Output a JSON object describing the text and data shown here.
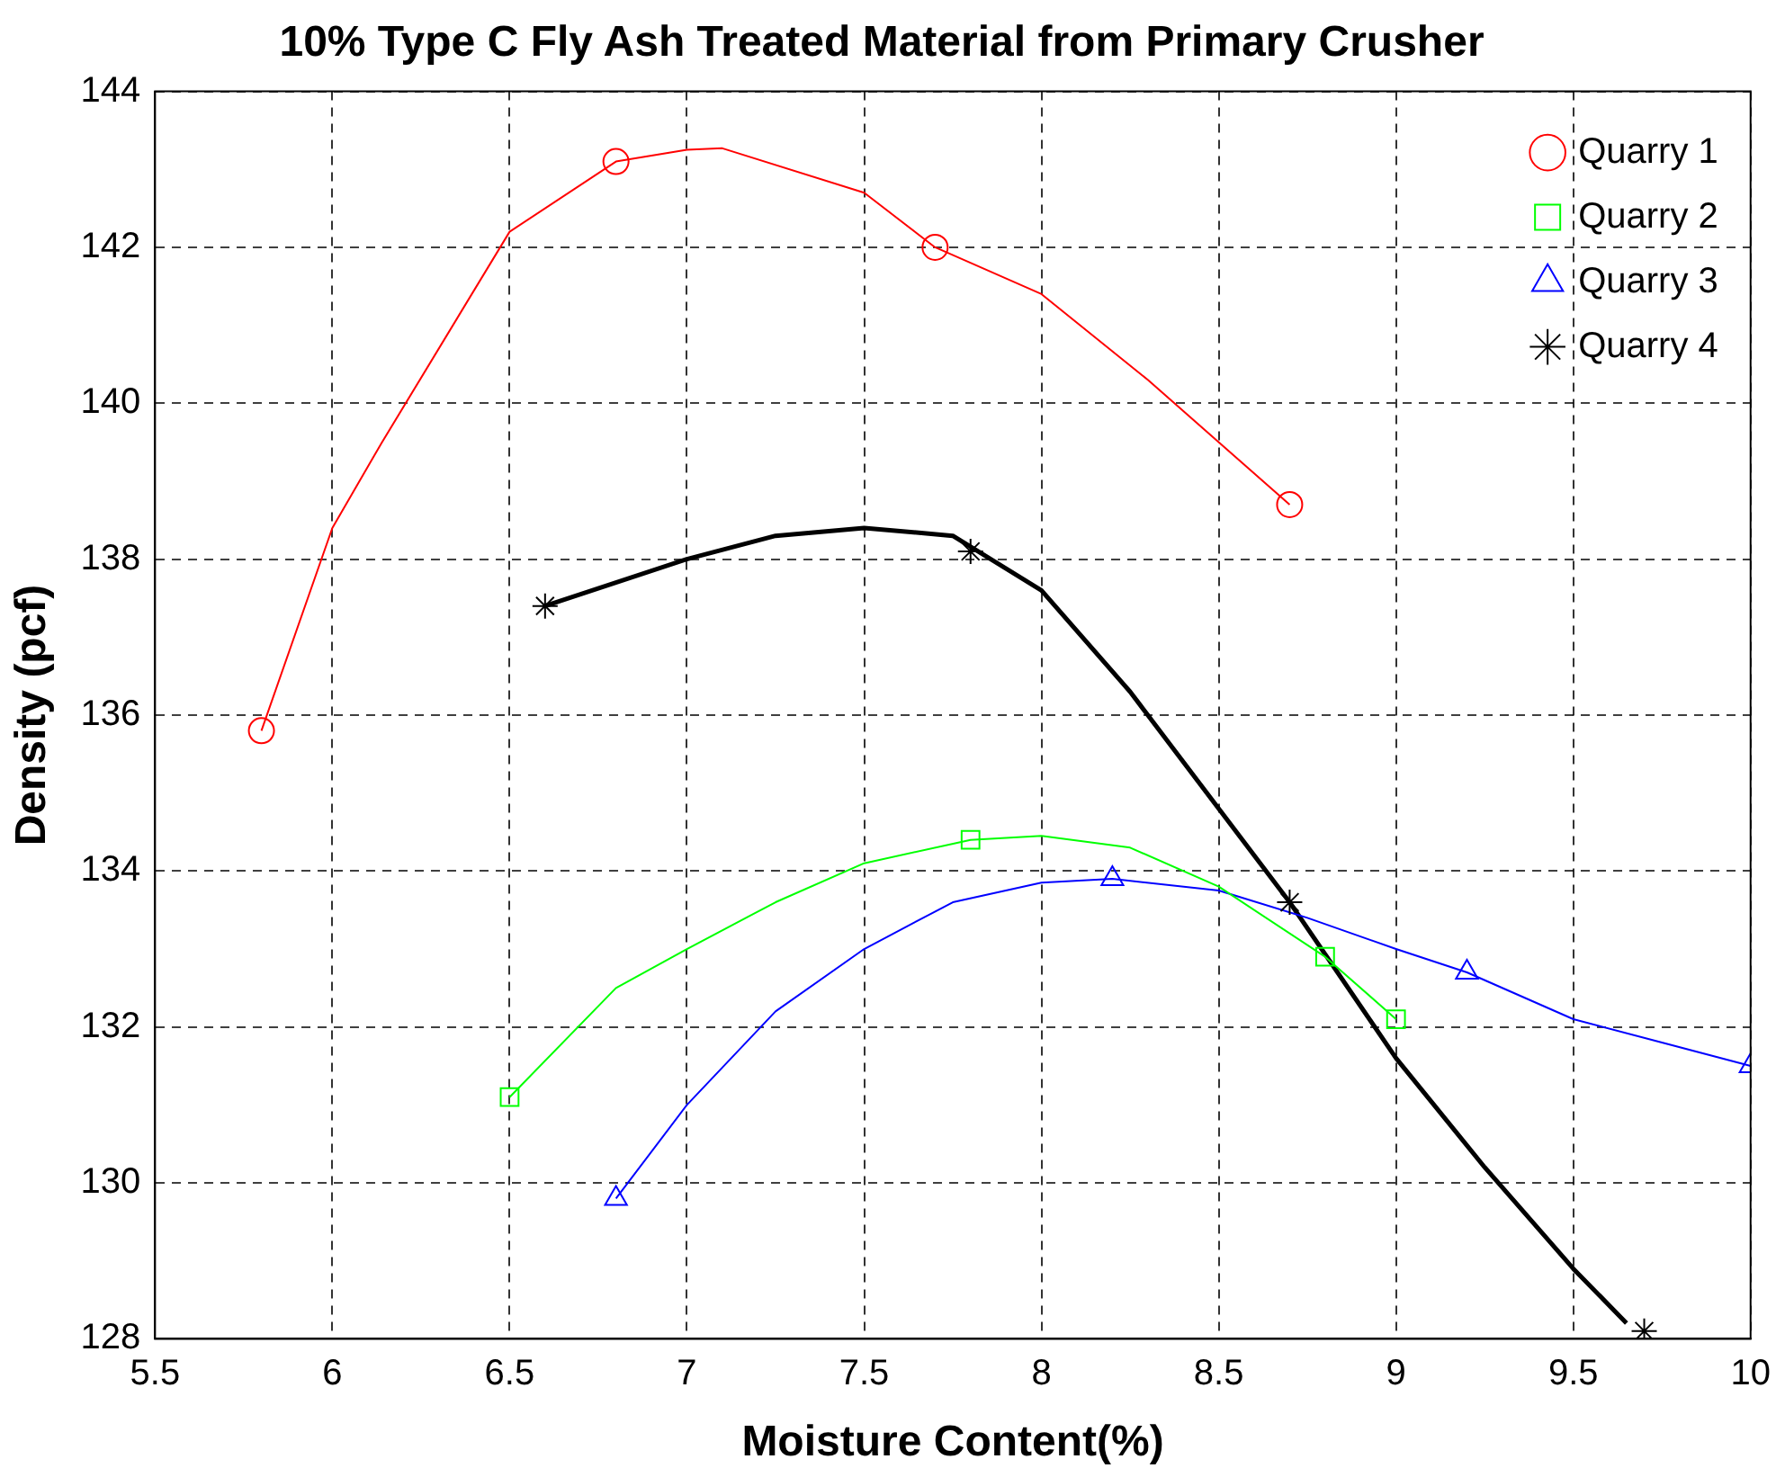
{
  "chart_data": {
    "type": "scatter",
    "title": "10% Type C Fly Ash Treated Material from Primary Crusher",
    "xlabel": "Moisture Content(%)",
    "ylabel": "Density (pcf)",
    "xlim": [
      5.5,
      10
    ],
    "xticks": [
      5.5,
      6,
      6.5,
      7,
      7.5,
      8,
      8.5,
      9,
      9.5,
      10
    ],
    "ylim": [
      128,
      144
    ],
    "yticks": [
      128,
      130,
      132,
      134,
      136,
      138,
      140,
      142,
      144
    ],
    "grid": true,
    "legend": "top right",
    "series": [
      {
        "name": "Quarry 1",
        "color": "#ff0000",
        "marker": "circle",
        "x": [
          5.8,
          6.8,
          7.7,
          8.7
        ],
        "values": [
          135.8,
          143.1,
          142.0,
          138.7
        ]
      },
      {
        "name": "Quarry 2",
        "color": "#00ff00",
        "marker": "square",
        "x": [
          6.5,
          7.8,
          8.8,
          9.0
        ],
        "values": [
          131.1,
          134.4,
          132.9,
          132.1
        ]
      },
      {
        "name": "Quarry 3",
        "color": "#0000ff",
        "marker": "triangle",
        "x": [
          6.8,
          8.2,
          9.2,
          10.0
        ],
        "values": [
          129.8,
          133.9,
          132.7,
          131.5
        ]
      },
      {
        "name": "Quarry 4",
        "color": "#000000",
        "marker": "cross",
        "x": [
          6.6,
          7.8,
          8.7,
          9.7
        ],
        "values": [
          137.4,
          138.1,
          133.6,
          128.1
        ]
      },
      {
        "type": "line",
        "color": "#ff0000",
        "marker": "none",
        "x": [
          5.8,
          6.0,
          6.14,
          6.5,
          6.8,
          7.0,
          7.1,
          7.5,
          7.7,
          8.0,
          8.3,
          8.7
        ],
        "values": [
          135.8,
          138.4,
          139.5,
          142.2,
          143.1,
          143.25,
          143.27,
          142.7,
          142.0,
          141.4,
          140.3,
          138.7
        ]
      },
      {
        "type": "line",
        "color": "#00ff00",
        "marker": "none",
        "x": [
          6.5,
          6.8,
          7.0,
          7.25,
          7.5,
          7.8,
          8.0,
          8.25,
          8.5,
          8.8,
          9.0
        ],
        "values": [
          131.1,
          132.5,
          133.0,
          133.6,
          134.1,
          134.4,
          134.45,
          134.3,
          133.8,
          132.9,
          132.1
        ]
      },
      {
        "type": "line",
        "color": "#0000ff",
        "marker": "none",
        "x": [
          6.8,
          7.0,
          7.25,
          7.5,
          7.75,
          8.0,
          8.2,
          8.5,
          8.75,
          9.0,
          9.2,
          9.5,
          9.75,
          10.0
        ],
        "values": [
          129.8,
          131.0,
          132.2,
          133.0,
          133.6,
          133.85,
          133.9,
          133.75,
          133.4,
          133.0,
          132.7,
          132.1,
          131.8,
          131.5
        ]
      },
      {
        "type": "line",
        "color": "#000000",
        "marker": "none",
        "x": [
          6.6,
          7.0,
          7.25,
          7.5,
          7.75,
          8.0,
          8.25,
          8.5,
          8.7,
          9.0,
          9.25,
          9.5,
          9.65
        ],
        "values": [
          137.4,
          138.0,
          138.3,
          138.4,
          138.3,
          137.6,
          136.3,
          134.8,
          133.6,
          131.6,
          130.2,
          128.9,
          128.2
        ]
      }
    ]
  }
}
